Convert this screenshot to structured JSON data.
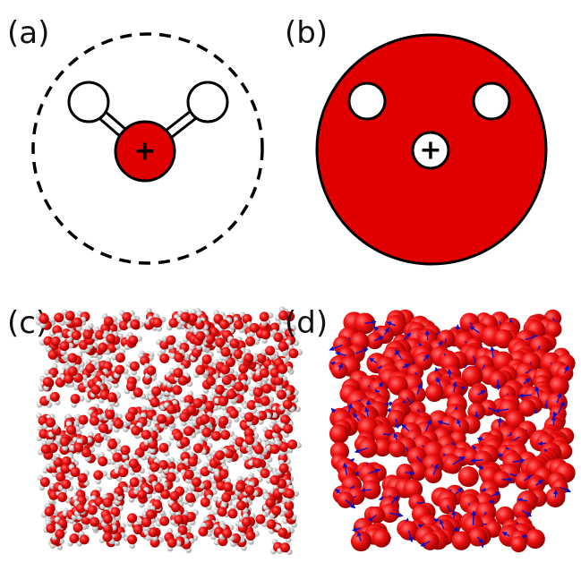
{
  "panels": [
    {
      "label": "(a)",
      "charge": "+"
    },
    {
      "label": "(b)",
      "charge": "+"
    },
    {
      "label": "(c)"
    },
    {
      "label": "(d)"
    }
  ]
}
